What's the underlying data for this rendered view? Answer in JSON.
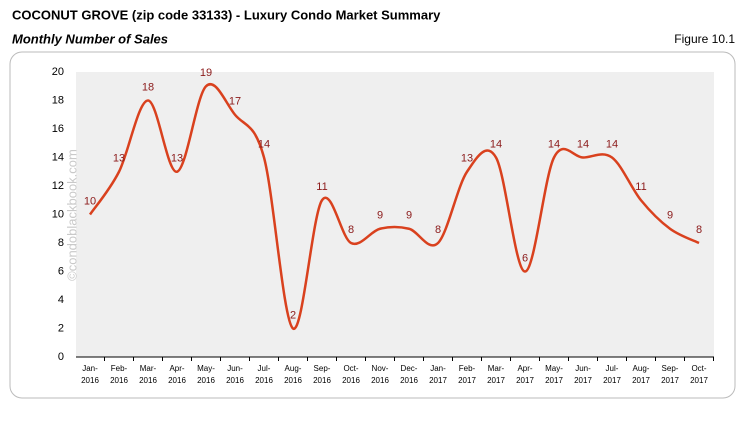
{
  "chart_data": {
    "type": "line",
    "title": "COCONUT GROVE (zip code 33133) - Luxury Condo Market Summary",
    "subtitle": "Monthly Number of Sales",
    "figure_label": "Figure 10.1",
    "watermark": "©condoblackbook.com",
    "categories": [
      "Jan-\n2016",
      "Feb-\n2016",
      "Mar-\n2016",
      "Apr-\n2016",
      "May-\n2016",
      "Jun-\n2016",
      "Jul-\n2016",
      "Aug-\n2016",
      "Sep-\n2016",
      "Oct-\n2016",
      "Nov-\n2016",
      "Dec-\n2016",
      "Jan-\n2017",
      "Feb-\n2017",
      "Mar-\n2017",
      "Apr-\n2017",
      "May-\n2017",
      "Jun-\n2017",
      "Jul-\n2017",
      "Aug-\n2017",
      "Sep-\n2017",
      "Oct-\n2017"
    ],
    "series": [
      {
        "name": "Number of Sales",
        "color": "#d9411e",
        "label_color": "#8b1a1a",
        "values": [
          10,
          13,
          18,
          13,
          19,
          17,
          14,
          2,
          11,
          8,
          9,
          9,
          8,
          13,
          14,
          6,
          14,
          14,
          14,
          11,
          9,
          8
        ]
      }
    ],
    "ylim": [
      0,
      20
    ],
    "yticks": [
      0,
      2,
      4,
      6,
      8,
      10,
      12,
      14,
      16,
      18,
      20
    ],
    "grid": false,
    "smooth": true
  }
}
